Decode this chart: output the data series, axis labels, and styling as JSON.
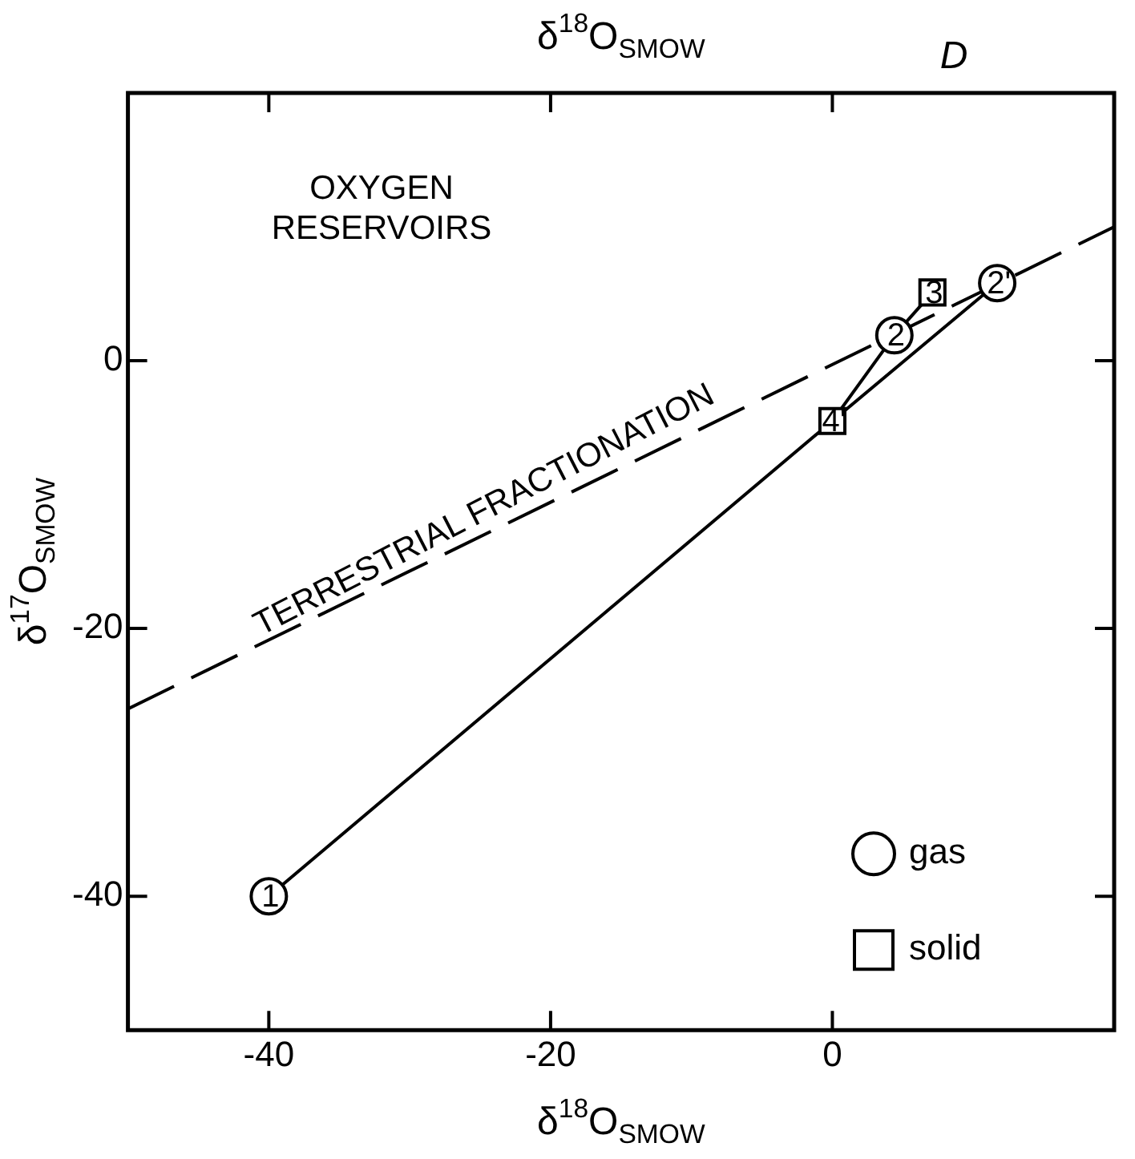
{
  "chart_data": {
    "type": "scatter",
    "title": "δ$^{18}$O$_{SMOW}$",
    "xlabel": "δ$^{18}$O$_{SMOW}$",
    "ylabel": "δ$^{17}$O$_{SMOW}$",
    "xlim": [
      -50,
      20
    ],
    "ylim": [
      -50,
      20
    ],
    "xticks": [
      -40,
      -20,
      0
    ],
    "yticks": [
      -40,
      -20,
      0
    ],
    "grid": false,
    "legend": "bottom right",
    "annotations": [
      "OXYGEN RESERVOIRS",
      "D",
      "TERRESTRIAL FRACTIONATION",
      {
        "text": "1",
        "x": -40,
        "y": -40
      },
      {
        "text": "2",
        "x": 4.4,
        "y": 1.9
      },
      {
        "text": "2'",
        "x": 11.7,
        "y": 5.8
      },
      {
        "text": "3",
        "x": 7.1,
        "y": 5.1
      },
      {
        "text": "4'",
        "x": 0,
        "y": -4.5
      }
    ],
    "series": [
      {
        "type": "line",
        "line_style": "dashed",
        "marker": "none",
        "color": "#000000",
        "x": [
          -50,
          20
        ],
        "values": [
          -26,
          10
        ]
      },
      {
        "type": "line",
        "line_style": "solid",
        "marker": "none",
        "color": "#000000",
        "x": [
          -40,
          0,
          11.7
        ],
        "values": [
          -40,
          -4.5,
          5.8
        ]
      },
      {
        "type": "line",
        "line_style": "solid",
        "marker": "none",
        "color": "#000000",
        "x": [
          0,
          4.4,
          7.1
        ],
        "values": [
          -4.5,
          1.9,
          5.1
        ]
      },
      {
        "name": "gas",
        "marker": "circle",
        "color": "#000000",
        "x": [
          -40,
          4.4,
          11.7
        ],
        "values": [
          -40,
          1.9,
          5.8
        ]
      },
      {
        "name": "solid",
        "marker": "square",
        "color": "#000000",
        "x": [
          7.1,
          0
        ],
        "values": [
          5.1,
          -4.5
        ]
      }
    ]
  }
}
